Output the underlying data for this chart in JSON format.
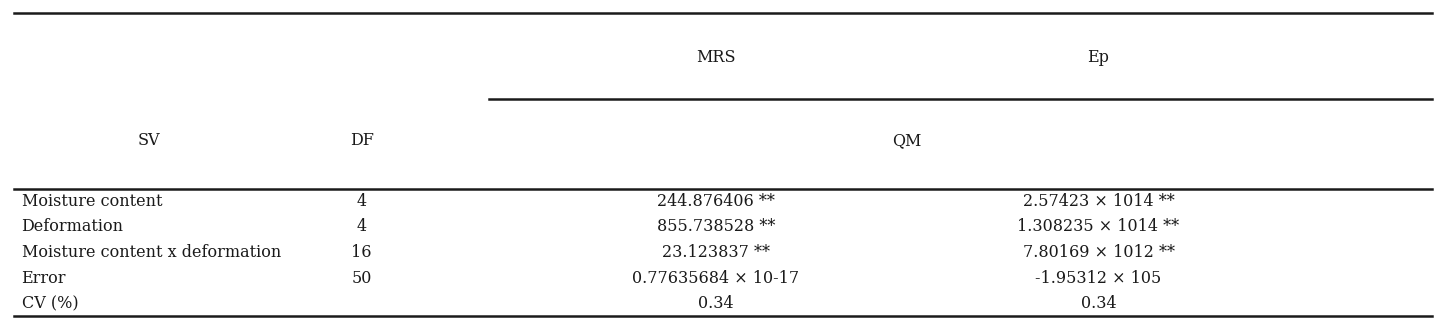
{
  "figsize": [
    14.46,
    3.26
  ],
  "dpi": 100,
  "table_bg": "#ffffff",
  "rows": [
    [
      "Moisture content",
      "4",
      "244.876406 **",
      "2.57423 × 1014 **"
    ],
    [
      "Deformation",
      "4",
      "855.738528 **",
      "1.308235 × 1014 **"
    ],
    [
      "Moisture content x deformation",
      "16",
      "23.123837 **",
      "7.80169 × 1012 **"
    ],
    [
      "Error",
      "50",
      "0.77635684 × 10-17",
      "-1.95312 × 105"
    ],
    [
      "CV (%)",
      "",
      "0.34",
      "0.34"
    ]
  ],
  "text_color": "#1a1a1a",
  "line_color": "#1a1a1a",
  "font_size": 11.5,
  "line_lw_thick": 1.8
}
